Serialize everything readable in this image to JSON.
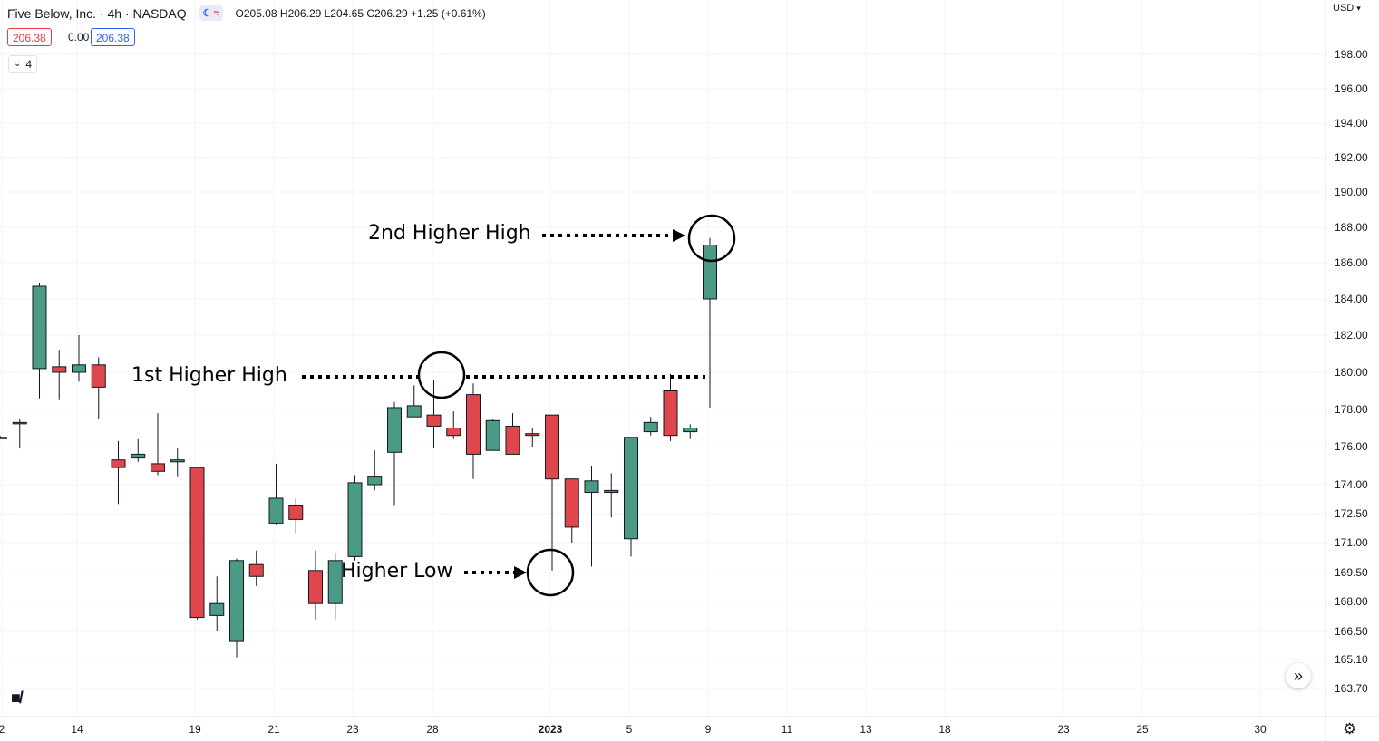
{
  "header": {
    "symbol_title": "Five Below, Inc. · 4h · NASDAQ",
    "ohlc_text": "O205.08  H206.29  L204.65  C206.29  +1.25 (+0.61%)",
    "bid": "206.38",
    "spread": "0.00",
    "ask": "206.38",
    "collapse_count": "4",
    "currency": "USD"
  },
  "colors": {
    "up": "#4a9a85",
    "down": "#e0474c",
    "grid": "#f0f3fa",
    "text": "#131722"
  },
  "annotations": {
    "higher_high_2": "2nd Higher High",
    "higher_high_1": "1st Higher High",
    "higher_low": "Higher Low"
  },
  "chart_data": {
    "type": "candlestick",
    "y_tick_labels": [
      "198.00",
      "196.00",
      "194.00",
      "192.00",
      "190.00",
      "188.00",
      "186.00",
      "184.00",
      "182.00",
      "180.00",
      "178.00",
      "176.00",
      "174.00",
      "172.50",
      "171.00",
      "169.50",
      "168.00",
      "166.50",
      "165.10",
      "163.70"
    ],
    "x_tick_labels": [
      "2",
      "14",
      "19",
      "21",
      "23",
      "28",
      "2023",
      "5",
      "9",
      "11",
      "13",
      "18",
      "23",
      "25",
      "30"
    ],
    "candles": [
      {
        "o": 176.5,
        "h": 176.6,
        "l": 176.4,
        "c": 176.5
      },
      {
        "o": 177.3,
        "h": 177.5,
        "l": 175.9,
        "c": 177.3
      },
      {
        "o": 180.2,
        "h": 184.9,
        "l": 178.6,
        "c": 184.7
      },
      {
        "o": 180.3,
        "h": 181.2,
        "l": 178.5,
        "c": 180.0
      },
      {
        "o": 180.0,
        "h": 182.0,
        "l": 179.5,
        "c": 180.4
      },
      {
        "o": 180.4,
        "h": 180.8,
        "l": 177.5,
        "c": 179.2
      },
      {
        "o": 175.3,
        "h": 176.3,
        "l": 173.0,
        "c": 174.9
      },
      {
        "o": 175.4,
        "h": 176.4,
        "l": 175.2,
        "c": 175.6
      },
      {
        "o": 175.1,
        "h": 177.8,
        "l": 174.5,
        "c": 174.7
      },
      {
        "o": 175.2,
        "h": 175.9,
        "l": 174.4,
        "c": 175.3
      },
      {
        "o": 174.9,
        "h": 174.9,
        "l": 167.1,
        "c": 167.2
      },
      {
        "o": 167.3,
        "h": 169.3,
        "l": 166.5,
        "c": 167.9
      },
      {
        "o": 166.0,
        "h": 170.2,
        "l": 165.2,
        "c": 170.1
      },
      {
        "o": 169.9,
        "h": 170.6,
        "l": 168.8,
        "c": 169.3
      },
      {
        "o": 172.0,
        "h": 175.1,
        "l": 171.9,
        "c": 173.3
      },
      {
        "o": 172.9,
        "h": 173.3,
        "l": 171.5,
        "c": 172.2
      },
      {
        "o": 169.6,
        "h": 170.6,
        "l": 167.1,
        "c": 167.9
      },
      {
        "o": 167.9,
        "h": 170.5,
        "l": 167.1,
        "c": 170.1
      },
      {
        "o": 170.3,
        "h": 174.5,
        "l": 170.1,
        "c": 174.1
      },
      {
        "o": 174.0,
        "h": 175.8,
        "l": 173.7,
        "c": 174.4
      },
      {
        "o": 175.7,
        "h": 178.4,
        "l": 172.9,
        "c": 178.1
      },
      {
        "o": 177.6,
        "h": 179.3,
        "l": 177.6,
        "c": 178.2
      },
      {
        "o": 177.7,
        "h": 179.6,
        "l": 175.9,
        "c": 177.1
      },
      {
        "o": 177.0,
        "h": 177.9,
        "l": 176.4,
        "c": 176.6
      },
      {
        "o": 178.8,
        "h": 179.4,
        "l": 174.3,
        "c": 175.6
      },
      {
        "o": 175.8,
        "h": 177.5,
        "l": 175.8,
        "c": 177.4
      },
      {
        "o": 177.1,
        "h": 177.8,
        "l": 175.6,
        "c": 175.6
      },
      {
        "o": 176.7,
        "h": 177.0,
        "l": 176.0,
        "c": 176.6
      },
      {
        "o": 177.7,
        "h": 177.7,
        "l": 169.6,
        "c": 174.3
      },
      {
        "o": 174.3,
        "h": 174.3,
        "l": 171.0,
        "c": 171.8
      },
      {
        "o": 173.6,
        "h": 175.0,
        "l": 169.8,
        "c": 174.2
      },
      {
        "o": 173.7,
        "h": 174.6,
        "l": 172.3,
        "c": 173.6
      },
      {
        "o": 171.2,
        "h": 176.5,
        "l": 170.3,
        "c": 176.5
      },
      {
        "o": 176.8,
        "h": 177.6,
        "l": 176.6,
        "c": 177.3
      },
      {
        "o": 179.0,
        "h": 179.9,
        "l": 176.3,
        "c": 176.6
      },
      {
        "o": 176.8,
        "h": 177.2,
        "l": 176.4,
        "c": 177.0
      },
      {
        "o": 184.0,
        "h": 187.4,
        "l": 178.1,
        "c": 187.0
      }
    ]
  }
}
